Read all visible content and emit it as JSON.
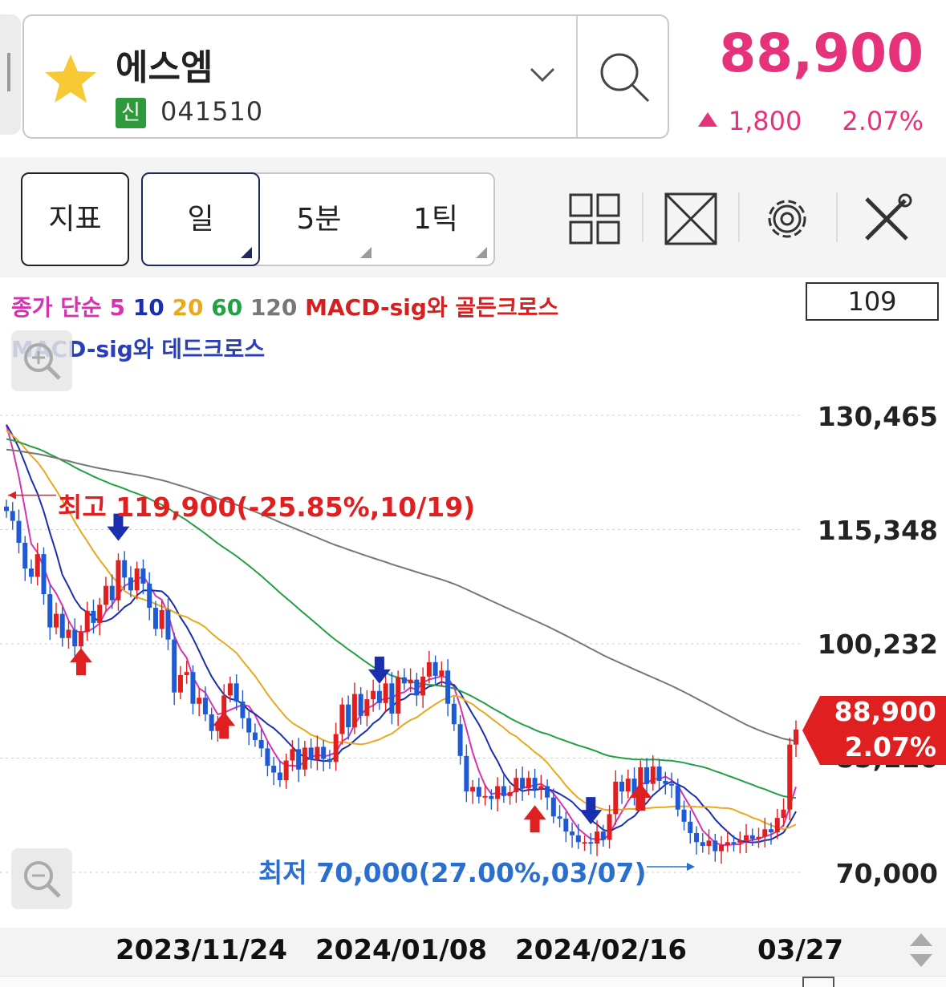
{
  "header": {
    "stock_name": "에스엠",
    "badge": "신",
    "code": "041510",
    "price": "88,900",
    "change": "1,800",
    "change_pct": "2.07%",
    "price_color": "#e6327a",
    "favorite_icon": "star-icon",
    "dropdown_icon": "chevron-down-icon",
    "search_icon": "search-icon"
  },
  "toolbar": {
    "indicator_label": "지표",
    "periods": [
      {
        "label": "일",
        "active": true
      },
      {
        "label": "5분",
        "active": false
      },
      {
        "label": "1틱",
        "active": false
      }
    ],
    "icons": [
      "grid-layout-icon",
      "expand-icon",
      "gear-icon",
      "tools-icon"
    ]
  },
  "legend": {
    "prefix": "종가 단순",
    "ma5": "5",
    "ma10": "10",
    "ma20": "20",
    "ma60": "60",
    "ma120": "120",
    "golden": "MACD-sig와 골든크로스",
    "dead": "MACD-sig와 데드크로스"
  },
  "view_count": "109",
  "zoom_icons": [
    "zoom-in-icon",
    "zoom-out-icon"
  ],
  "y_labels": [
    "130,465",
    "115,348",
    "100,232",
    "85,116",
    "70,000"
  ],
  "last_tag": {
    "price": "88,900",
    "pct": "2.07%"
  },
  "annotations": {
    "high": "최고 119,900(-25.85%,10/19)",
    "low": "최저 70,000(27.00%,03/07)"
  },
  "x_labels": [
    "2023/11/24",
    "2024/01/08",
    "2024/02/16",
    "03/27"
  ],
  "chart_data": {
    "type": "candlestick",
    "ylim": [
      70000,
      130465
    ],
    "y_ticks": [
      130465,
      115348,
      100232,
      85116,
      70000
    ],
    "candles_close": [
      117800,
      116500,
      113600,
      110200,
      109100,
      112100,
      106800,
      102400,
      104200,
      101000,
      102100,
      99900,
      101800,
      104600,
      103000,
      105400,
      107900,
      106000,
      111300,
      109000,
      107300,
      110200,
      108200,
      105000,
      102200,
      104700,
      100800,
      93800,
      96100,
      96500,
      92300,
      93100,
      90900,
      88700,
      89500,
      93400,
      95000,
      92600,
      90400,
      88500,
      87500,
      86400,
      84100,
      83200,
      82200,
      84800,
      86300,
      83600,
      86500,
      84900,
      86600,
      85000,
      84600,
      88300,
      92200,
      89200,
      93600,
      90700,
      92900,
      94000,
      92400,
      95000,
      91000,
      95800,
      95000,
      95500,
      93400,
      95900,
      97800,
      96000,
      96700,
      92300,
      89600,
      85400,
      80700,
      81300,
      80000,
      80100,
      79700,
      81400,
      80100,
      80600,
      82500,
      81100,
      82500,
      81000,
      81400,
      79900,
      77400,
      77100,
      75400,
      74900,
      74000,
      74000,
      73800,
      75400,
      74300,
      77700,
      82000,
      80700,
      82400,
      80000,
      83900,
      81700,
      84000,
      82100,
      81700,
      81500,
      78300,
      76700,
      75200,
      74000,
      73500,
      74200,
      72800,
      73600,
      74000,
      73900,
      74200,
      74900,
      74400,
      74700,
      75700,
      75300,
      77200,
      78300,
      86900,
      88900
    ],
    "candles_up_color": "#e02020",
    "candles_down_color": "#1f5ad6",
    "series": [
      {
        "name": "5",
        "color": "#d633b0"
      },
      {
        "name": "10",
        "color": "#1a2fb0"
      },
      {
        "name": "20",
        "color": "#e9a81e"
      },
      {
        "name": "60",
        "color": "#22a044"
      },
      {
        "name": "120",
        "color": "#777777"
      }
    ],
    "high_point": {
      "value": 119900,
      "date": "10/19"
    },
    "low_point": {
      "value": 70000,
      "date": "03/07"
    },
    "signals_up_idx": [
      12,
      35,
      85,
      102
    ],
    "signals_down_idx": [
      18,
      60,
      94
    ],
    "x_tick_labels": [
      "2023/11/24",
      "2024/01/08",
      "2024/02/16",
      "03/27"
    ],
    "last_value": 88900,
    "last_pct": "2.07%"
  }
}
